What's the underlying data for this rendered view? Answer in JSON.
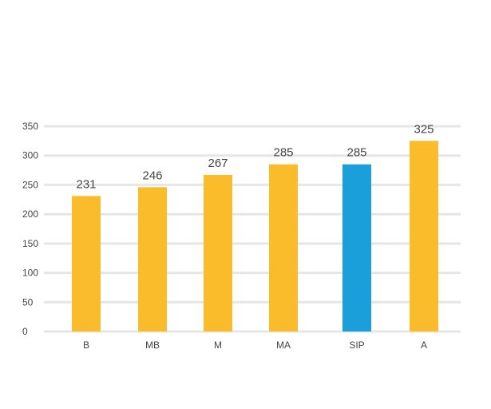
{
  "chart_data": {
    "type": "bar",
    "categories": [
      "B",
      "MB",
      "M",
      "MA",
      "SIP",
      "A"
    ],
    "values": [
      231,
      246,
      267,
      285,
      285,
      325
    ],
    "data_labels": [
      "231",
      "246",
      "267",
      "285",
      "285",
      "325"
    ],
    "highlight_index": 4,
    "colors": {
      "bar": "#FBBC2C",
      "highlight": "#1B9FDB",
      "grid": "#E6E6E6",
      "text": "#444444"
    },
    "ylim": [
      0,
      350
    ],
    "yticks": [
      0,
      50,
      100,
      150,
      200,
      250,
      300,
      350
    ],
    "ytick_labels": [
      "0",
      "50",
      "100",
      "150",
      "200",
      "250",
      "300",
      "350"
    ],
    "grid": true,
    "title": "",
    "xlabel": "",
    "ylabel": ""
  }
}
